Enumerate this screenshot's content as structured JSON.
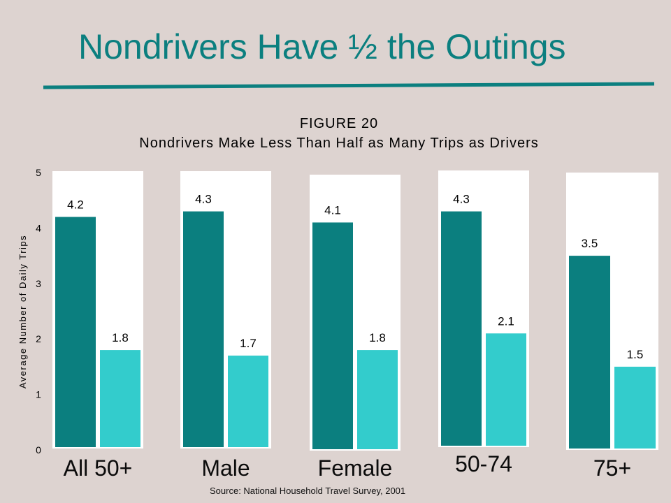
{
  "slide": {
    "title": "Nondrivers Have ½ the Outings",
    "source": "Source: National Household Travel Survey, 2001"
  },
  "colors": {
    "title": "#0b7f7f",
    "drivers": "#0b7f7f",
    "nondrivers": "#33cccc",
    "panel": "#ffffff",
    "background": "#ddd3d0"
  },
  "chart_data": {
    "type": "bar",
    "title": "FIGURE 20",
    "subtitle": "Nondrivers Make Less Than Half as Many Trips as Drivers",
    "xlabel": "",
    "ylabel": "Average Number of Daily Trips",
    "ylim": [
      0,
      5
    ],
    "yticks": [
      "0",
      "1",
      "2",
      "3",
      "4",
      "5"
    ],
    "categories": [
      "All 50+",
      "Male",
      "Female",
      "50-74",
      "75+"
    ],
    "series": [
      {
        "values": [
          4.2,
          4.3,
          4.1,
          4.3,
          3.5
        ],
        "labels": [
          "4.2",
          "4.3",
          "4.1",
          "4.3",
          "3.5"
        ]
      },
      {
        "values": [
          1.8,
          1.7,
          1.8,
          2.1,
          1.5
        ],
        "labels": [
          "1.8",
          "1.7",
          "1.8",
          "2.1",
          "1.5"
        ]
      }
    ],
    "grid": false,
    "legend": "none"
  }
}
